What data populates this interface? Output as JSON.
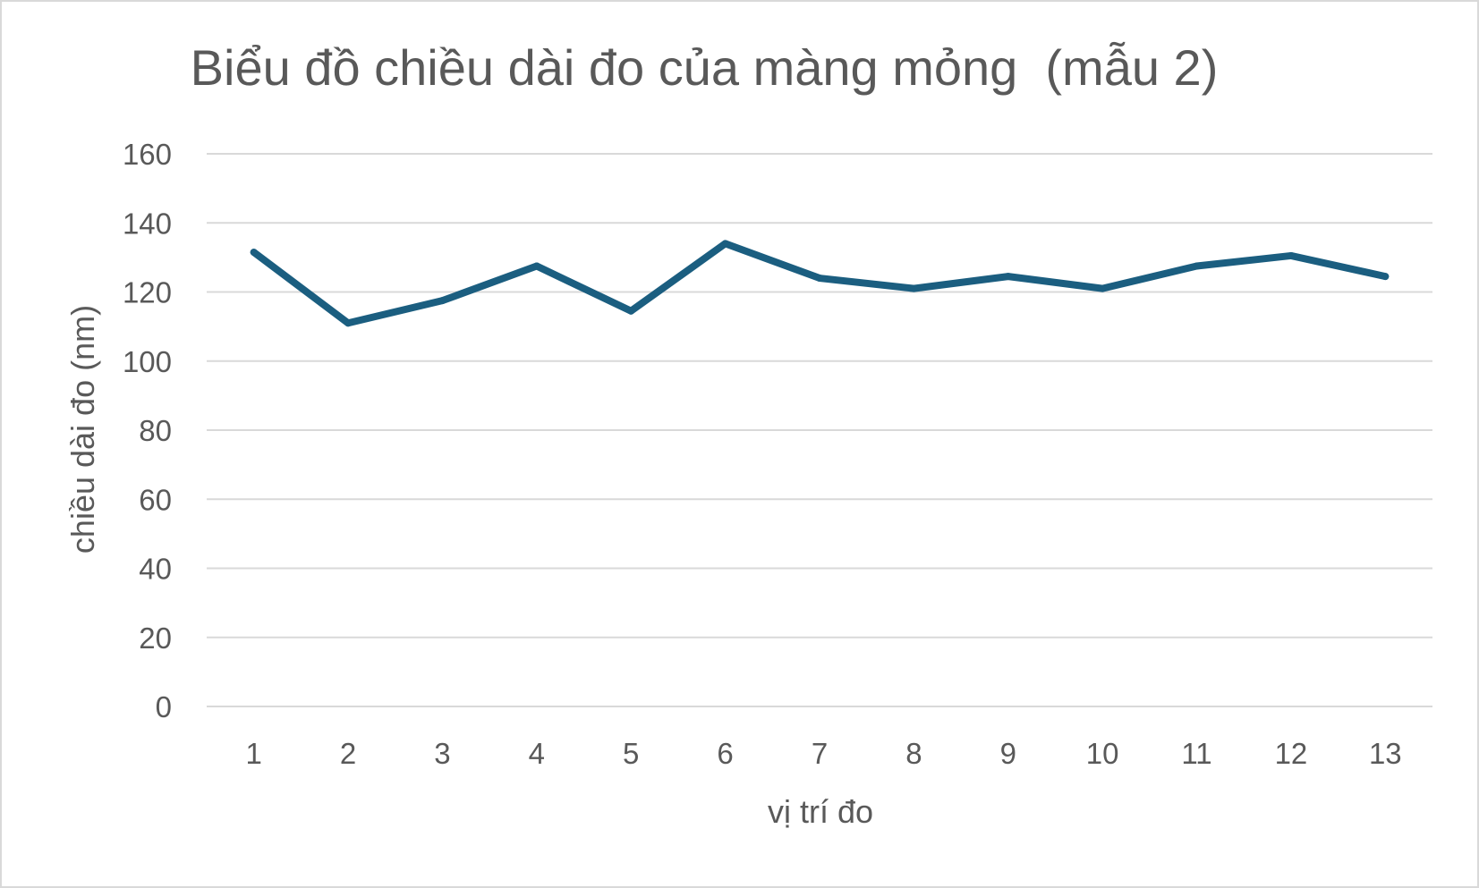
{
  "chart_data": {
    "type": "line",
    "title": "Biểu đồ chiều dài đo của màng mỏng  (mẫu 2)",
    "xlabel": "vị trí đo",
    "ylabel": "chiều dài đo (nm)",
    "categories": [
      "1",
      "2",
      "3",
      "4",
      "5",
      "6",
      "7",
      "8",
      "9",
      "10",
      "11",
      "12",
      "13"
    ],
    "y_ticks": [
      "0",
      "20",
      "40",
      "60",
      "80",
      "100",
      "120",
      "140",
      "160"
    ],
    "ylim": [
      0,
      160
    ],
    "grid": true,
    "legend": "none",
    "series": [
      {
        "color": "#1b5e80",
        "values": [
          131.5,
          111,
          117.5,
          127.5,
          114.5,
          134,
          124,
          121,
          124.5,
          121,
          127.5,
          130.5,
          124.5
        ]
      }
    ]
  }
}
